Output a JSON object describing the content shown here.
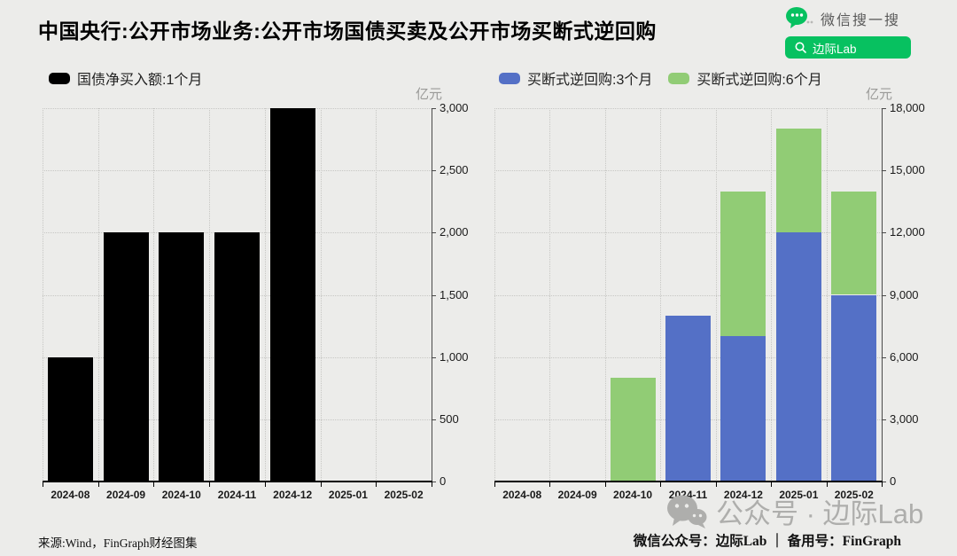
{
  "page": {
    "title": "中国央行:公开市场业务:公开市场国债买卖及公开市场买断式逆回购",
    "background": "#ECECEA"
  },
  "wechat_search": {
    "caption": "微信搜一搜",
    "button_label": "边际Lab",
    "brand_green": "#07C160"
  },
  "footer": {
    "source": "来源:Wind，FinGraph财经图集",
    "watermark_text": "公众号 · 边际Lab",
    "accounts": "微信公众号：边际Lab ｜ 备用号：FinGraph"
  },
  "chart_data": [
    {
      "type": "bar",
      "stacked": false,
      "unit": "亿元",
      "legend_position": "top-left",
      "grid": "dotted",
      "categories": [
        "2024-08",
        "2024-09",
        "2024-10",
        "2024-11",
        "2024-12",
        "2025-01",
        "2025-02"
      ],
      "series": [
        {
          "name": "国债净买入额:1个月",
          "color": "#000000",
          "values": [
            1000,
            2000,
            2000,
            2000,
            3000,
            0,
            0
          ]
        }
      ],
      "ylim": [
        0,
        3000
      ],
      "ytick_step": 500,
      "ytick_labels": [
        "0",
        "500",
        "1,000",
        "1,500",
        "2,000",
        "2,500",
        "3,000"
      ]
    },
    {
      "type": "bar",
      "stacked": true,
      "unit": "亿元",
      "legend_position": "top-left",
      "grid": "dotted",
      "categories": [
        "2024-08",
        "2024-09",
        "2024-10",
        "2024-11",
        "2024-12",
        "2025-01",
        "2025-02"
      ],
      "series": [
        {
          "name": "买断式逆回购:3个月",
          "color": "#5470C6",
          "values": [
            0,
            0,
            0,
            8000,
            7000,
            12000,
            9000
          ]
        },
        {
          "name": "买断式逆回购:6个月",
          "color": "#91CC75",
          "values": [
            0,
            0,
            5000,
            0,
            7000,
            5000,
            5000
          ]
        }
      ],
      "ylim": [
        0,
        18000
      ],
      "ytick_step": 3000,
      "ytick_labels": [
        "0",
        "3,000",
        "6,000",
        "9,000",
        "12,000",
        "15,000",
        "18,000"
      ]
    }
  ]
}
